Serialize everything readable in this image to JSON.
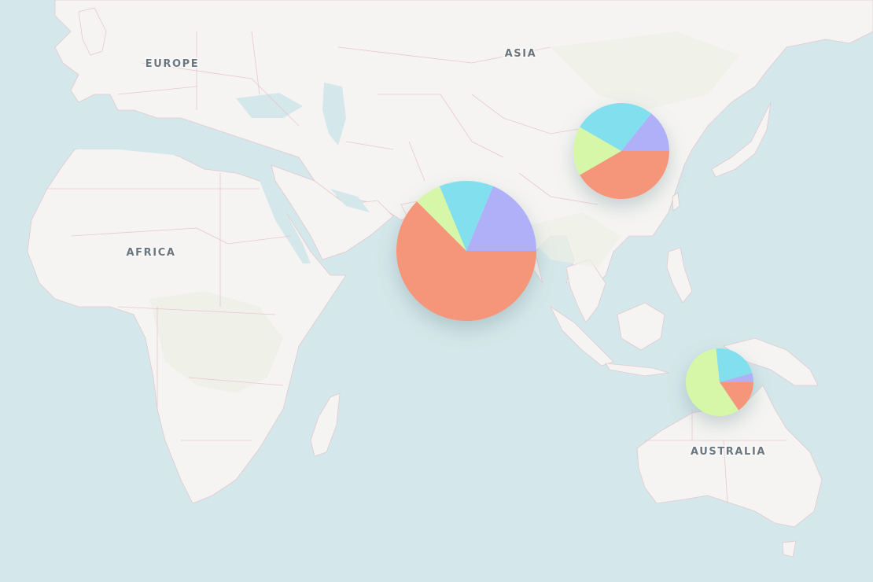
{
  "map": {
    "labels": {
      "europe": "EUROPE",
      "asia": "ASIA",
      "africa": "AFRICA",
      "australia": "AUSTRALIA"
    },
    "colors": {
      "water": "#d4e7ea",
      "land": "#f5f4f2",
      "border": "#e4c9cf",
      "label": "#6b7780"
    }
  },
  "chart_data": {
    "type": "pie",
    "series_colors": [
      "#b0b0f8",
      "#f5967a",
      "#d6f7a8",
      "#82e0ee"
    ],
    "markers": [
      {
        "name": "",
        "values": [
          0.15,
          0.5,
          0.05,
          0.1
        ],
        "colors": [
          "#b0b0f8",
          "#f5967a",
          "#d6f7a8",
          "#82e0ee"
        ]
      },
      {
        "name": "",
        "values": [
          0.12,
          0.35,
          0.14,
          0.23
        ],
        "colors": [
          "#b0b0f8",
          "#f5967a",
          "#d6f7a8",
          "#82e0ee"
        ]
      },
      {
        "name": "",
        "values": [
          0.02,
          0.07,
          0.26,
          0.1
        ],
        "colors": [
          "#b0b0f8",
          "#f5967a",
          "#d6f7a8",
          "#82e0ee"
        ]
      }
    ]
  }
}
